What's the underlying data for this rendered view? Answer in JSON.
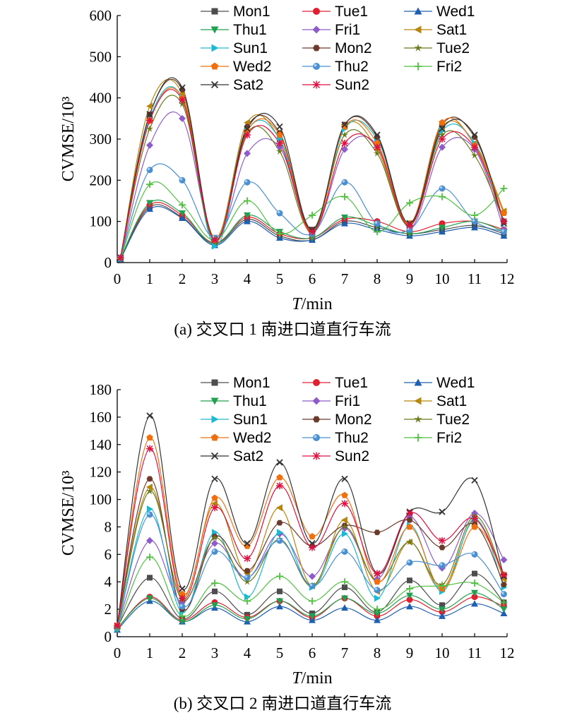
{
  "series_styles": [
    {
      "name": "Mon1",
      "color": "#4d4d4d",
      "marker": "square"
    },
    {
      "name": "Tue1",
      "color": "#e02030",
      "marker": "circle"
    },
    {
      "name": "Wed1",
      "color": "#1f5fb0",
      "marker": "triangle"
    },
    {
      "name": "Thu1",
      "color": "#20a050",
      "marker": "tri-down"
    },
    {
      "name": "Fri1",
      "color": "#8e5cc8",
      "marker": "diamond"
    },
    {
      "name": "Sat1",
      "color": "#b8860b",
      "marker": "tri-left"
    },
    {
      "name": "Sun1",
      "color": "#20b8d0",
      "marker": "tri-right"
    },
    {
      "name": "Mon2",
      "color": "#6b3a2a",
      "marker": "hexagon"
    },
    {
      "name": "Tue2",
      "color": "#6b7a1a",
      "marker": "star"
    },
    {
      "name": "Wed2",
      "color": "#f07010",
      "marker": "pentagon"
    },
    {
      "name": "Thu2",
      "color": "#4a90d0",
      "marker": "ball"
    },
    {
      "name": "Fri2",
      "color": "#50c040",
      "marker": "plus"
    },
    {
      "name": "Sat2",
      "color": "#333333",
      "marker": "x"
    },
    {
      "name": "Sun2",
      "color": "#e01040",
      "marker": "asterisk"
    }
  ],
  "chart_data": [
    {
      "type": "line",
      "caption": "(a) 交叉口 1 南进口道直行车流",
      "xlabel_italic": "T",
      "xlabel_rest": "/min",
      "ylabel": "CVMSE/10³",
      "xlim": [
        0,
        12
      ],
      "ylim": [
        0,
        600
      ],
      "xticks": [
        "0",
        "1",
        "2",
        "3",
        "4",
        "5",
        "6",
        "7",
        "8",
        "9",
        "10",
        "11",
        "12"
      ],
      "yticks": [
        "0",
        "100",
        "200",
        "300",
        "400",
        "500",
        "600"
      ],
      "x": [
        0.1,
        1,
        2,
        3,
        4,
        5,
        6,
        7,
        8,
        9,
        10,
        11,
        11.9
      ],
      "series": [
        {
          "name": "Mon1",
          "values": [
            10,
            135,
            110,
            45,
            105,
            65,
            55,
            100,
            85,
            70,
            80,
            90,
            70
          ]
        },
        {
          "name": "Tue1",
          "values": [
            10,
            140,
            115,
            48,
            110,
            70,
            60,
            105,
            100,
            75,
            95,
            100,
            80
          ]
        },
        {
          "name": "Wed1",
          "values": [
            8,
            130,
            108,
            42,
            100,
            60,
            55,
            95,
            80,
            65,
            75,
            85,
            65
          ]
        },
        {
          "name": "Thu1",
          "values": [
            10,
            145,
            120,
            45,
            115,
            75,
            60,
            110,
            90,
            70,
            85,
            100,
            75
          ]
        },
        {
          "name": "Fri1",
          "values": [
            10,
            285,
            350,
            55,
            265,
            280,
            75,
            275,
            285,
            85,
            280,
            275,
            80
          ]
        },
        {
          "name": "Sat1",
          "values": [
            12,
            380,
            410,
            60,
            340,
            300,
            80,
            330,
            275,
            90,
            330,
            290,
            125
          ]
        },
        {
          "name": "Sun1",
          "values": [
            10,
            350,
            400,
            40,
            320,
            300,
            75,
            325,
            300,
            95,
            320,
            290,
            95
          ]
        },
        {
          "name": "Mon2",
          "values": [
            12,
            360,
            420,
            55,
            330,
            315,
            80,
            335,
            305,
            95,
            335,
            305,
            100
          ]
        },
        {
          "name": "Tue2",
          "values": [
            12,
            325,
            385,
            50,
            315,
            270,
            75,
            310,
            265,
            90,
            310,
            260,
            100
          ]
        },
        {
          "name": "Wed2",
          "values": [
            12,
            345,
            400,
            55,
            320,
            310,
            70,
            330,
            290,
            95,
            340,
            285,
            120
          ]
        },
        {
          "name": "Thu2",
          "values": [
            12,
            225,
            200,
            60,
            195,
            120,
            70,
            195,
            95,
            80,
            180,
            100,
            75
          ]
        },
        {
          "name": "Fri2",
          "values": [
            10,
            190,
            140,
            55,
            150,
            70,
            115,
            160,
            75,
            145,
            160,
            115,
            180
          ]
        },
        {
          "name": "Sat2",
          "values": [
            12,
            360,
            425,
            55,
            325,
            330,
            80,
            335,
            310,
            95,
            325,
            310,
            95
          ]
        },
        {
          "name": "Sun2",
          "values": [
            12,
            345,
            395,
            55,
            310,
            290,
            75,
            290,
            280,
            90,
            300,
            280,
            100
          ]
        }
      ]
    },
    {
      "type": "line",
      "caption": "(b) 交叉口 2 南进口道直行车流",
      "xlabel_italic": "T",
      "xlabel_rest": "/min",
      "ylabel": "CVMSE/10³",
      "xlim": [
        0,
        12
      ],
      "ylim": [
        0,
        180
      ],
      "xticks": [
        "0",
        "1",
        "2",
        "3",
        "4",
        "5",
        "6",
        "7",
        "8",
        "9",
        "10",
        "11",
        "12"
      ],
      "yticks": [
        "0",
        "2",
        "4",
        "6",
        "8",
        "100",
        "120",
        "140",
        "160",
        "180"
      ],
      "x": [
        0,
        1,
        2,
        3,
        4,
        5,
        6,
        7,
        8,
        9,
        10,
        11,
        11.9
      ],
      "series": [
        {
          "name": "Mon1",
          "values": [
            7,
            43,
            13,
            33,
            16,
            33,
            17,
            36,
            18,
            41,
            23,
            46,
            25
          ]
        },
        {
          "name": "Tue1",
          "values": [
            6,
            29,
            12,
            25,
            14,
            26,
            14,
            28,
            15,
            27,
            18,
            29,
            22
          ]
        },
        {
          "name": "Wed1",
          "values": [
            5,
            26,
            11,
            21,
            11,
            22,
            12,
            21,
            12,
            22,
            15,
            24,
            17
          ]
        },
        {
          "name": "Thu1",
          "values": [
            6,
            28,
            11,
            23,
            13,
            26,
            15,
            28,
            17,
            30,
            20,
            32,
            20
          ]
        },
        {
          "name": "Fri1",
          "values": [
            7,
            70,
            25,
            68,
            43,
            75,
            44,
            79,
            42,
            87,
            50,
            90,
            56
          ]
        },
        {
          "name": "Sat1",
          "values": [
            8,
            109,
            28,
            97,
            46,
            94,
            37,
            85,
            33,
            69,
            35,
            85,
            42
          ]
        },
        {
          "name": "Sun1",
          "values": [
            6,
            93,
            18,
            76,
            29,
            76,
            36,
            75,
            28,
            81,
            33,
            86,
            36
          ]
        },
        {
          "name": "Mon2",
          "values": [
            8,
            115,
            20,
            73,
            48,
            83,
            66,
            81,
            76,
            85,
            65,
            82,
            38
          ]
        },
        {
          "name": "Tue2",
          "values": [
            7,
            106,
            27,
            72,
            40,
            71,
            37,
            80,
            40,
            69,
            38,
            88,
            44
          ]
        },
        {
          "name": "Wed2",
          "values": [
            8,
            145,
            31,
            101,
            66,
            116,
            73,
            103,
            40,
            80,
            35,
            80,
            45
          ]
        },
        {
          "name": "Thu2",
          "values": [
            6,
            89,
            22,
            62,
            43,
            70,
            37,
            62,
            34,
            54,
            52,
            60,
            31
          ]
        },
        {
          "name": "Fri2",
          "values": [
            6,
            58,
            15,
            39,
            26,
            44,
            26,
            40,
            20,
            35,
            37,
            39,
            25
          ]
        },
        {
          "name": "Sat2",
          "values": [
            8,
            161,
            35,
            115,
            68,
            127,
            68,
            115,
            46,
            91,
            91,
            114,
            44
          ]
        },
        {
          "name": "Sun2",
          "values": [
            8,
            137,
            28,
            94,
            57,
            110,
            65,
            97,
            46,
            90,
            70,
            86,
            45
          ]
        }
      ]
    }
  ]
}
